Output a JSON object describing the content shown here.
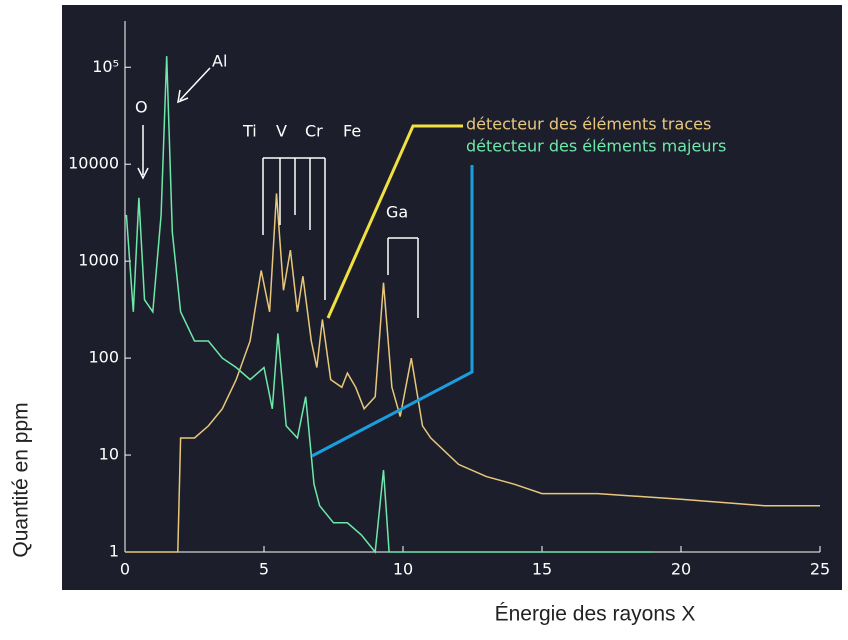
{
  "chart_data": {
    "type": "line",
    "xlabel": "Énergie des rayons X",
    "ylabel": "Quantité en ppm",
    "log_y": true,
    "xlim": [
      0,
      25
    ],
    "ylim": [
      1,
      300000
    ],
    "xticks": [
      0,
      5,
      10,
      15,
      20,
      25
    ],
    "yticks": [
      1,
      10,
      100,
      1000,
      10000,
      {
        "value": 100000,
        "label": "10⁵"
      }
    ],
    "annotations": [
      "O",
      "Al",
      "Ti",
      "V",
      "Cr",
      "Fe",
      "Ga"
    ],
    "series": [
      {
        "name": "détecteur des éléments traces",
        "color": "#e8c77a",
        "x": [
          0,
          1.9,
          2.0,
          2.5,
          3.0,
          3.5,
          4.0,
          4.5,
          4.9,
          5.2,
          5.45,
          5.7,
          5.95,
          6.2,
          6.4,
          6.7,
          6.9,
          7.1,
          7.4,
          7.8,
          8.0,
          8.3,
          8.6,
          9.0,
          9.3,
          9.6,
          9.9,
          10.3,
          10.7,
          11.0,
          12.0,
          13.0,
          14.0,
          15.0,
          17.0,
          20.0,
          23.0,
          25.0
        ],
        "values": [
          1,
          1,
          15,
          15,
          20,
          30,
          60,
          150,
          800,
          300,
          5000,
          500,
          1300,
          300,
          700,
          150,
          80,
          250,
          60,
          50,
          70,
          50,
          30,
          40,
          600,
          50,
          25,
          100,
          20,
          15,
          8,
          6,
          5,
          4,
          4,
          3.5,
          3,
          3
        ]
      },
      {
        "name": "détecteur des éléments majeurs",
        "color": "#6ee8a8",
        "x": [
          0.05,
          0.3,
          0.5,
          0.7,
          1.0,
          1.3,
          1.5,
          1.7,
          2.0,
          2.5,
          3.0,
          3.5,
          4.0,
          4.5,
          5.0,
          5.3,
          5.5,
          5.8,
          6.2,
          6.5,
          6.8,
          7.0,
          7.5,
          8.0,
          8.5,
          9.0,
          9.3,
          9.5,
          10.0,
          11.0,
          12.0,
          19.0
        ],
        "values": [
          3000,
          300,
          4500,
          400,
          300,
          3000,
          130000,
          2000,
          300,
          150,
          150,
          100,
          80,
          60,
          80,
          30,
          180,
          20,
          15,
          40,
          5,
          3,
          2,
          2,
          1.5,
          1,
          7,
          1,
          1,
          1,
          1,
          1
        ]
      }
    ]
  }
}
